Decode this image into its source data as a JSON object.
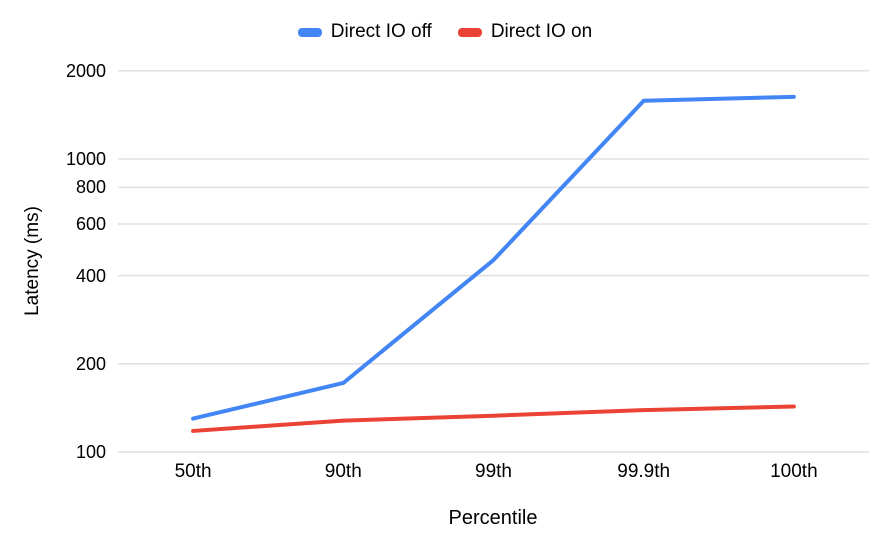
{
  "chart_data": {
    "type": "line",
    "title": "",
    "xlabel": "Percentile",
    "ylabel": "Latency (ms)",
    "categories": [
      "50th",
      "90th",
      "99th",
      "99.9th",
      "100th"
    ],
    "series": [
      {
        "name": "Direct IO off",
        "color": "#4285F4",
        "values": [
          130,
          172,
          452,
          1580,
          1630
        ]
      },
      {
        "name": "Direct IO on",
        "color": "#EA4335",
        "values": [
          118,
          128,
          133,
          139,
          143
        ]
      }
    ],
    "y_scale": "log",
    "y_ticks": [
      100,
      200,
      400,
      600,
      800,
      1000,
      2000
    ],
    "ylim": [
      100,
      2200
    ],
    "grid": true,
    "gridline_color": "#e0e0e0",
    "legend_position": "top"
  }
}
